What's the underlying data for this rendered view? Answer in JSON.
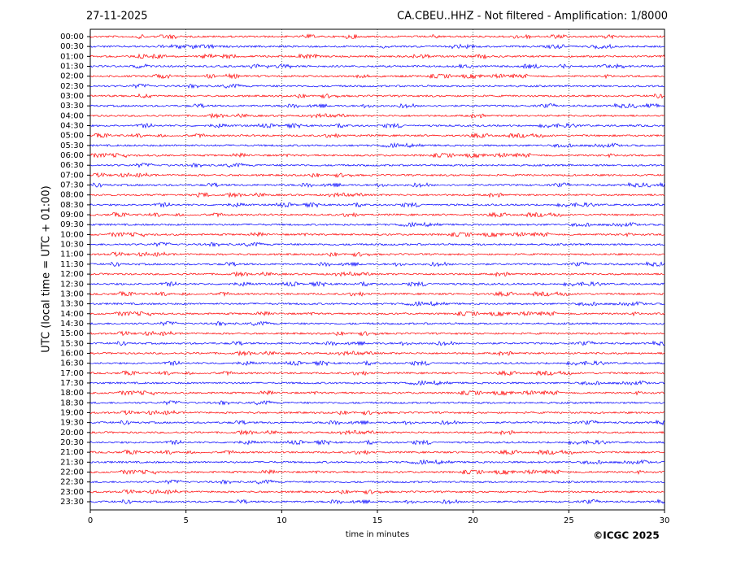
{
  "chart_data": {
    "type": "helicorder",
    "title_left": "27-11-2025",
    "title": "CA.CBEU..HHZ - Not filtered - Amplification: 1/8000",
    "xlabel": "time in minutes",
    "ylabel": "UTC (local time = UTC + 01:00)",
    "copyright": "©ICGC 2025",
    "categories": [
      "00:00",
      "00:30",
      "01:00",
      "01:30",
      "02:00",
      "02:30",
      "03:00",
      "03:30",
      "04:00",
      "04:30",
      "05:00",
      "05:30",
      "06:00",
      "06:30",
      "07:00",
      "07:30",
      "08:00",
      "08:30",
      "09:00",
      "09:30",
      "10:00",
      "10:30",
      "11:00",
      "11:30",
      "12:00",
      "12:30",
      "13:00",
      "13:30",
      "14:00",
      "14:30",
      "15:00",
      "15:30",
      "16:00",
      "16:30",
      "17:00",
      "17:30",
      "18:00",
      "18:30",
      "19:00",
      "19:30",
      "20:00",
      "20:30",
      "21:00",
      "21:30",
      "22:00",
      "22:30",
      "23:00",
      "23:30"
    ],
    "colors": [
      "#ff0000",
      "#0000ff"
    ],
    "xlim": [
      0,
      30
    ],
    "xticks": [
      0,
      5,
      10,
      15,
      20,
      25,
      30
    ],
    "grid": true
  }
}
